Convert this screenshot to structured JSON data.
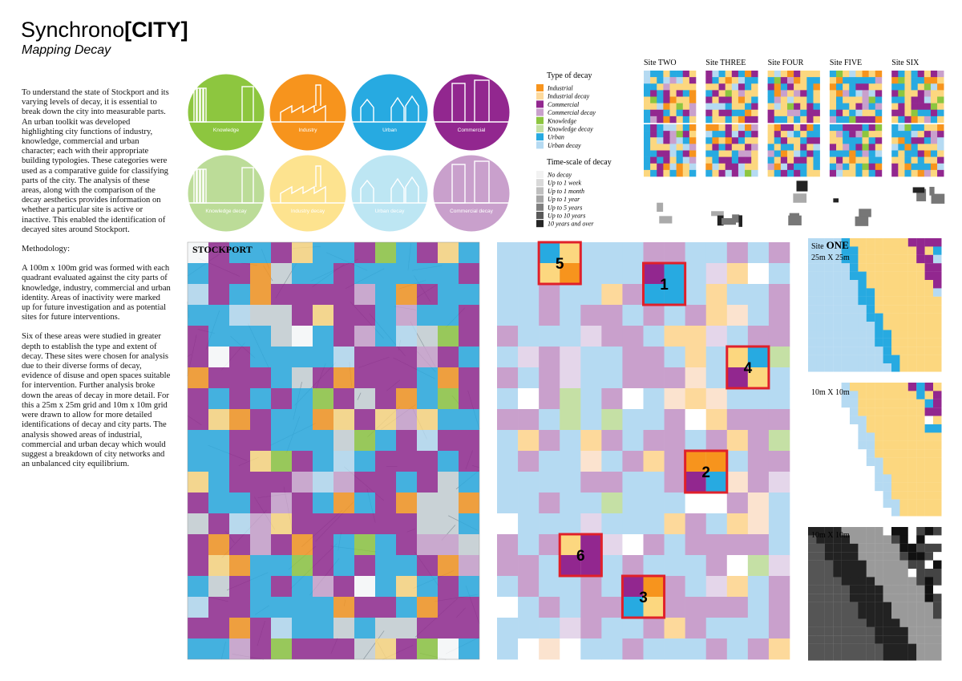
{
  "header": {
    "title": "Synchrono",
    "title_bold": "[CITY]",
    "subtitle": "Mapping Decay"
  },
  "intro": [
    "To understand the state of Stockport and its varying levels of decay, it is essential to break down the city into measurable parts. An urban toolkit was developed highlighting city functions of  industry, knowledge, commercial and urban character; each with their appropriate building typologies. These categories were used as a comparative guide for classifying parts of the city. The analysis of these areas, along with the comparison of the decay aesthetics provides information on whether a particular site is active or inactive. This enabled the identification of decayed sites around Stockport.",
    "Methodology:",
    "A 100m x 100m grid was formed with each quadrant evaluated against the city parts of knowledge, industry, commercial and urban identity. Areas of inactivity were marked up for future investigation and as potential sites for future interventions.",
    "Six of these areas were studied in greater depth to establish the type and extent of decay. These sites were chosen for analysis due to their diverse forms of decay, evidence of disuse and open spaces suitable for intervention. Further analysis broke down the areas of decay in more detail. For this a 25m x 25m grid and 10m x 10m grid were drawn to allow for more detailed identifications of decay and city parts. The analysis showed areas of industrial, commercial and urban decay which would suggest a breakdown of city networks and an unbalanced city equilibrium."
  ],
  "city_parts": [
    "Knowledge",
    "Industry",
    "Urban",
    "Commercial",
    "Knowledge decay",
    "Industry decay",
    "Urban decay",
    "Commercial decay"
  ],
  "legend": {
    "type_title": "Type of decay",
    "types": [
      "Industrial",
      "Industrial decay",
      "Commercial",
      "Commercial decay",
      "Knowledge",
      "Knowledge decay",
      "Urban",
      "Urban decay"
    ],
    "time_title": "Time-scale of decay",
    "times": [
      "No decay",
      "Up to 1 week",
      "Up to 1 month",
      "Up to 1 year",
      "Up to 5 years",
      "Up to 10 years",
      "10 years and over"
    ]
  },
  "sites": [
    "Site TWO",
    "Site THREE",
    "Site FOUR",
    "Site FIVE",
    "Site SIX"
  ],
  "map": {
    "label": "STOCKPORT"
  },
  "site_markers": [
    5,
    1,
    4,
    2,
    6,
    3
  ],
  "site_one": {
    "label": "Site",
    "label_bold": "ONE",
    "scale_1": "25m X 25m",
    "scale_2": "10m X 10m",
    "scale_3": "10m X 10m"
  }
}
